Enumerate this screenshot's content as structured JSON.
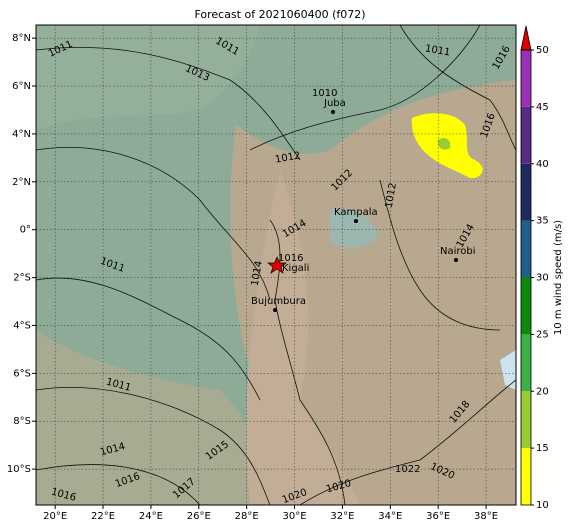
{
  "title": "Forecast of 2021060400 (f072)",
  "map": {
    "xlim": [
      19.2,
      39.25
    ],
    "ylim": [
      -11.5,
      8.55
    ],
    "xticks": [
      {
        "value": 20,
        "label": "20°E"
      },
      {
        "value": 22,
        "label": "22°E"
      },
      {
        "value": 24,
        "label": "24°E"
      },
      {
        "value": 26,
        "label": "26°E"
      },
      {
        "value": 28,
        "label": "28°E"
      },
      {
        "value": 30,
        "label": "30°E"
      },
      {
        "value": 32,
        "label": "32°E"
      },
      {
        "value": 34,
        "label": "34°E"
      },
      {
        "value": 36,
        "label": "36°E"
      },
      {
        "value": 38,
        "label": "38°E"
      }
    ],
    "yticks": [
      {
        "value": 8,
        "label": "8°N"
      },
      {
        "value": 6,
        "label": "6°N"
      },
      {
        "value": 4,
        "label": "4°N"
      },
      {
        "value": 2,
        "label": "2°N"
      },
      {
        "value": 0,
        "label": "0°"
      },
      {
        "value": -2,
        "label": "2°S"
      },
      {
        "value": -4,
        "label": "4°S"
      },
      {
        "value": -6,
        "label": "6°S"
      },
      {
        "value": -8,
        "label": "8°S"
      },
      {
        "value": -10,
        "label": "10°S"
      }
    ],
    "cities": [
      "Juba",
      "Kampala",
      "Kigali",
      "Bujumbura",
      "Nairobi"
    ],
    "isobar_labels": [
      "1011",
      "1011",
      "1013",
      "1010",
      "1012",
      "1012",
      "1014",
      "1016",
      "1011",
      "1014",
      "1011",
      "1012",
      "1014",
      "1015",
      "1014",
      "1017",
      "1016",
      "1020",
      "1020",
      "1022",
      "1020",
      "1018",
      "1016",
      "1011",
      "1016",
      "1016"
    ]
  },
  "colorbar": {
    "label": "10 m wind speed (m/s)",
    "lim": [
      10,
      50
    ],
    "ticks": [
      10,
      15,
      20,
      25,
      30,
      35,
      40,
      45,
      50
    ],
    "colors": [
      "#ffff00",
      "#9acd32",
      "#3cb043",
      "#0a8a0a",
      "#1f5f8b",
      "#1c2a5e",
      "#5a2a88",
      "#9b30b8"
    ],
    "extend_color": "#e00000"
  }
}
